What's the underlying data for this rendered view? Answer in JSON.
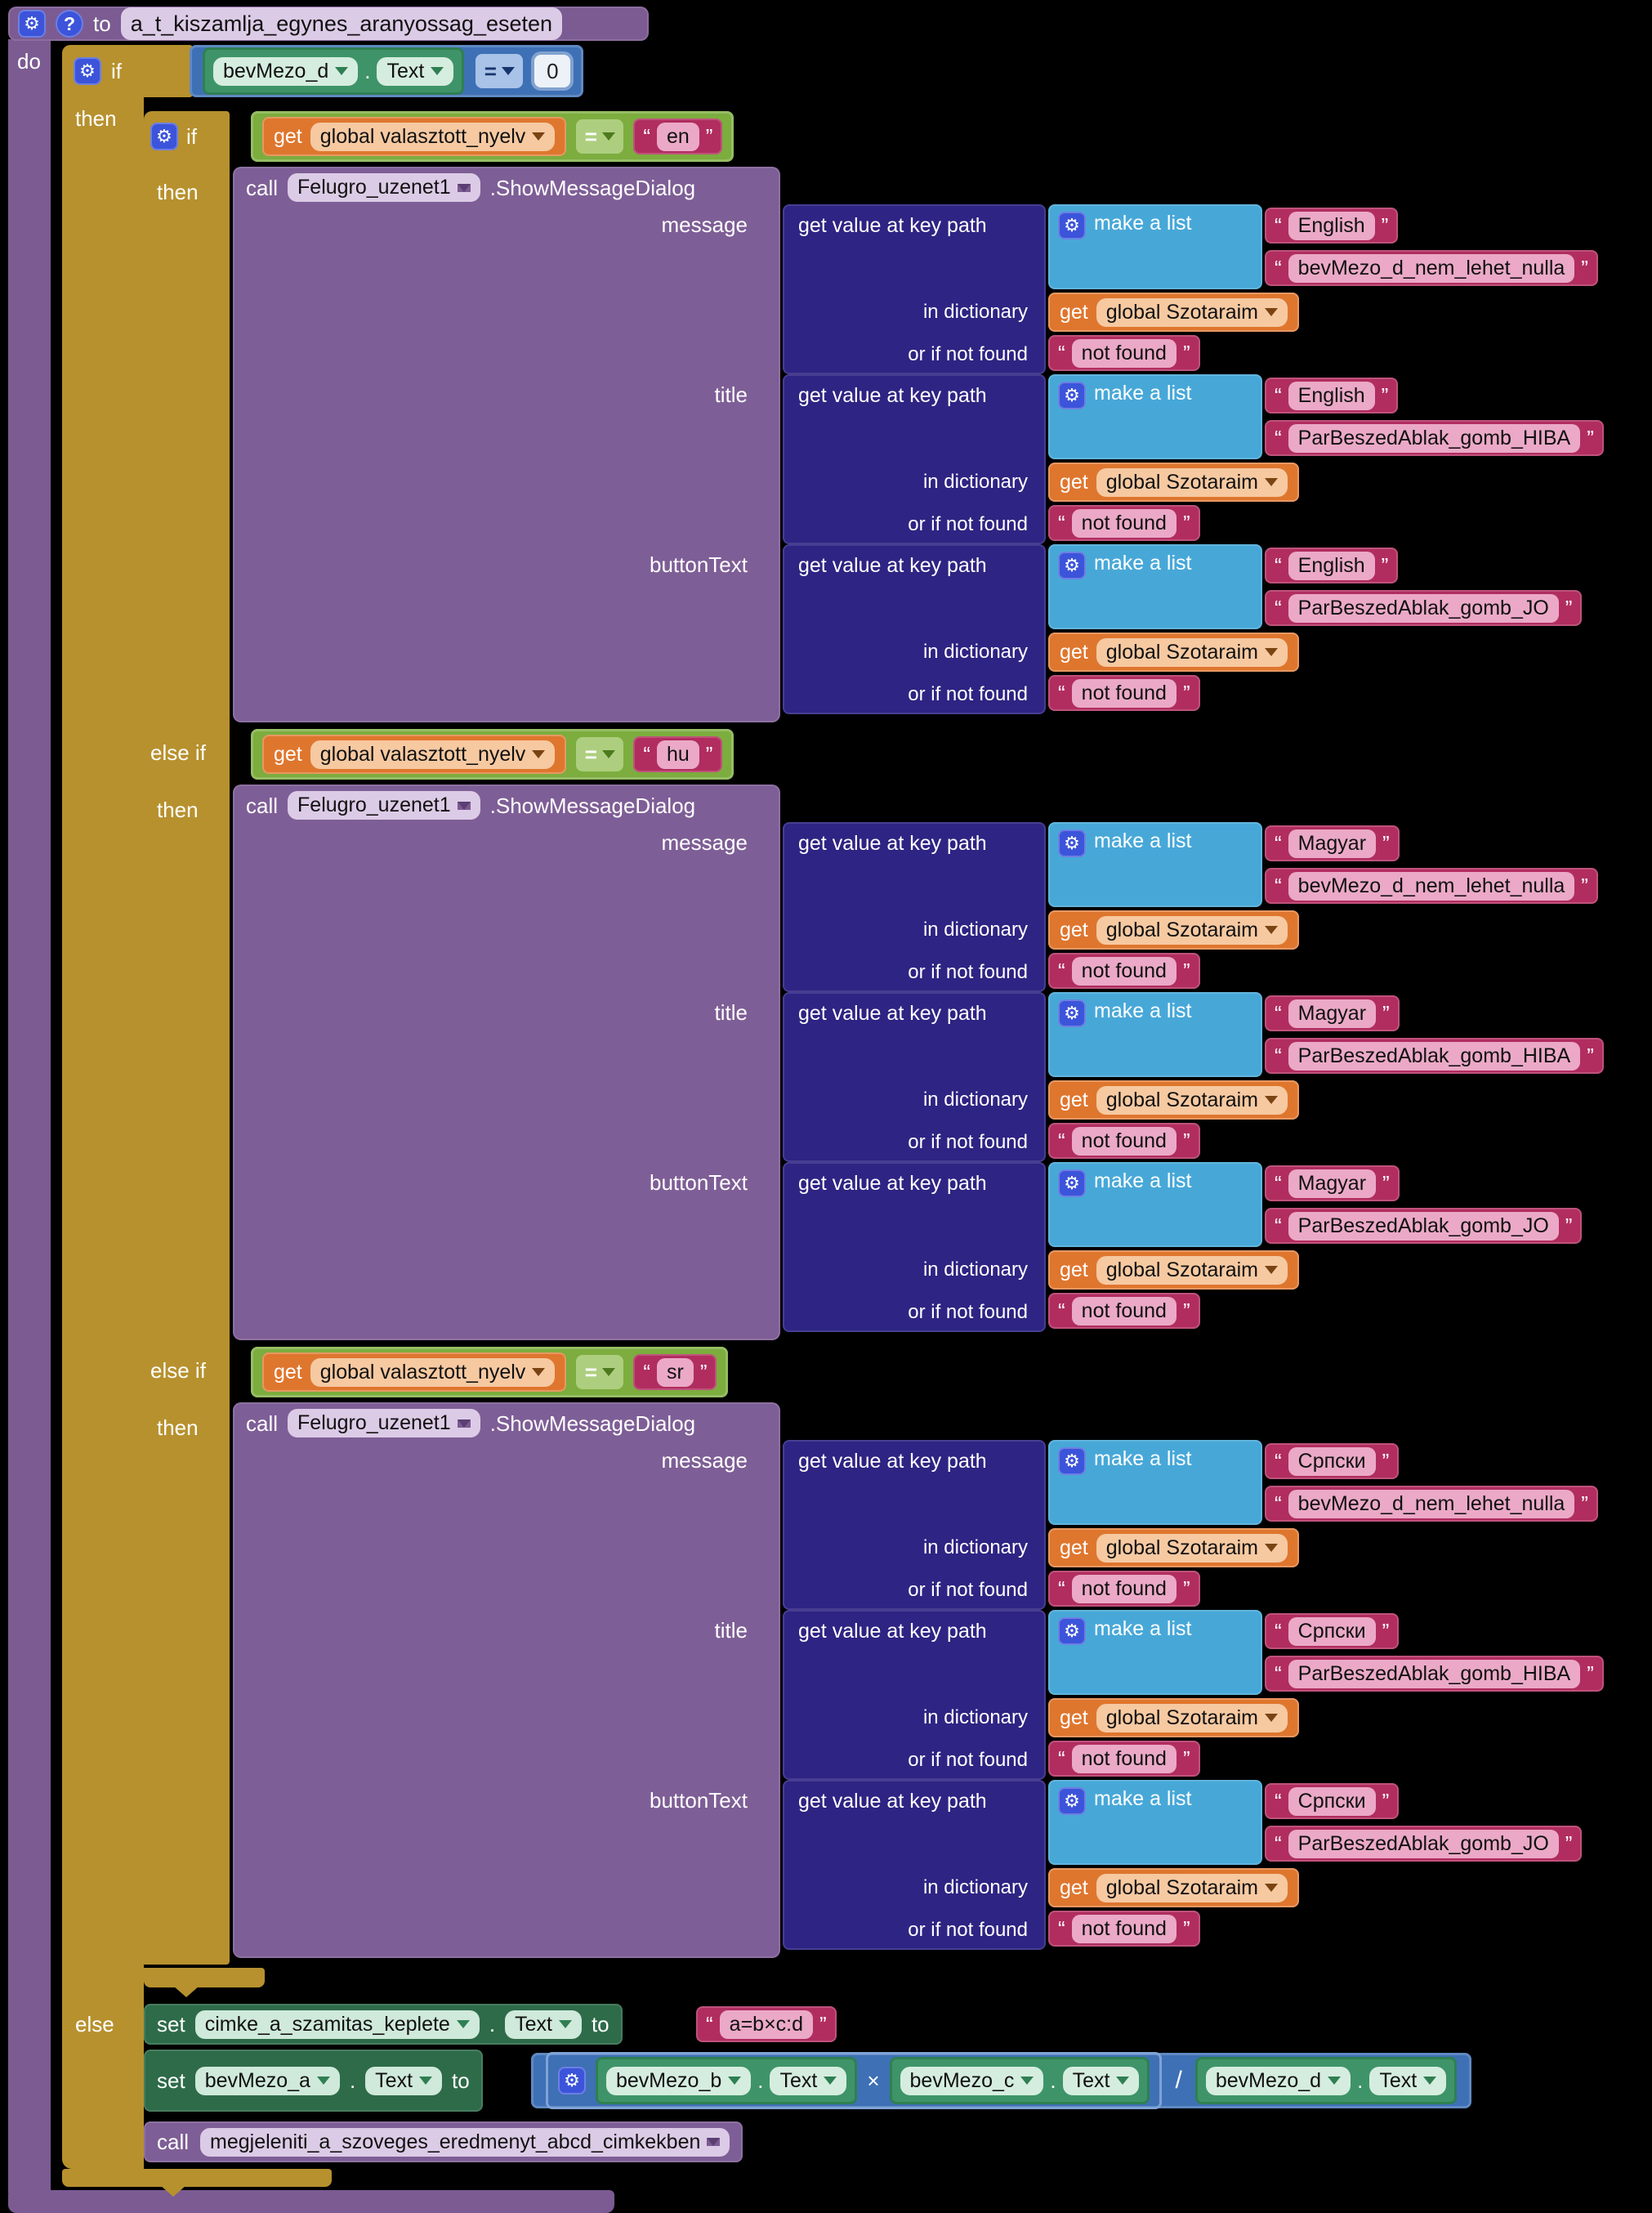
{
  "ui": {
    "quote_open": "“",
    "quote_close": "”",
    "dot": ".",
    "divide": "/"
  },
  "icons": {
    "gear": "⚙",
    "help": "?"
  },
  "procedure": {
    "to_label": "to",
    "name": "a_t_kiszamlja_egynes_aranyossag_eseten",
    "do_label": "do"
  },
  "outer_if": {
    "if_label": "if",
    "then_label": "then",
    "else_label": "else",
    "condition": {
      "component": "bevMezo_d",
      "property": "Text",
      "operator": "=",
      "value": "0"
    }
  },
  "inner_if": {
    "if_label": "if",
    "then_label": "then",
    "elseif_label": "else if"
  },
  "dialog": {
    "call_label": "call",
    "component": "Felugro_uzenet1",
    "method": ".ShowMessageDialog",
    "params": [
      "message",
      "title",
      "buttonText"
    ],
    "dict": {
      "row1": "get value at key path",
      "row2": "in dictionary",
      "row3": "or if not found"
    },
    "list_label": "make a list",
    "get_label": "get",
    "dictionary_var": "global Szotaraim",
    "not_found": "not found"
  },
  "branches": [
    {
      "get_label": "get",
      "var": "global valasztott_nyelv",
      "op": "=",
      "code": "en",
      "lang": "English",
      "keys": {
        "message": "bevMezo_d_nem_lehet_nulla",
        "title": "ParBeszedAblak_gomb_HIBA",
        "button": "ParBeszedAblak_gomb_JO"
      }
    },
    {
      "get_label": "get",
      "var": "global valasztott_nyelv",
      "op": "=",
      "code": "hu",
      "lang": "Magyar",
      "keys": {
        "message": "bevMezo_d_nem_lehet_nulla",
        "title": "ParBeszedAblak_gomb_HIBA",
        "button": "ParBeszedAblak_gomb_JO"
      }
    },
    {
      "get_label": "get",
      "var": "global valasztott_nyelv",
      "op": "=",
      "code": "sr",
      "lang": "Српски",
      "keys": {
        "message": "bevMezo_d_nem_lehet_nulla",
        "title": "ParBeszedAblak_gomb_HIBA",
        "button": "ParBeszedAblak_gomb_JO"
      }
    }
  ],
  "else_branch": {
    "set_label": "set",
    "to_label": "to",
    "set1": {
      "component": "cimke_a_szamitas_keplete",
      "property": "Text",
      "value": "a=b×c:d"
    },
    "set2": {
      "component": "bevMezo_a",
      "property": "Text",
      "expr": {
        "times": "×",
        "divide": "/",
        "b": {
          "component": "bevMezo_b",
          "property": "Text"
        },
        "c": {
          "component": "bevMezo_c",
          "property": "Text"
        },
        "d": {
          "component": "bevMezo_d",
          "property": "Text"
        }
      }
    },
    "call": {
      "call_label": "call",
      "procedure": "megjeleniti_a_szoveges_eredmenyt_abcd_cimkekben"
    }
  },
  "colors": {
    "control": "#B7912E",
    "logic": "#7CAD3E",
    "math": "#3E70B5",
    "text": "#B12D5F",
    "lists": "#47A8D8",
    "dictionaries": "#2E2483",
    "variables": "#DF762E",
    "procedures": "#7B5B92",
    "component_set": "#2E6B49",
    "component_get": "#3E9468",
    "icon_blue": "#3C54DA",
    "canvas": "#000000"
  }
}
